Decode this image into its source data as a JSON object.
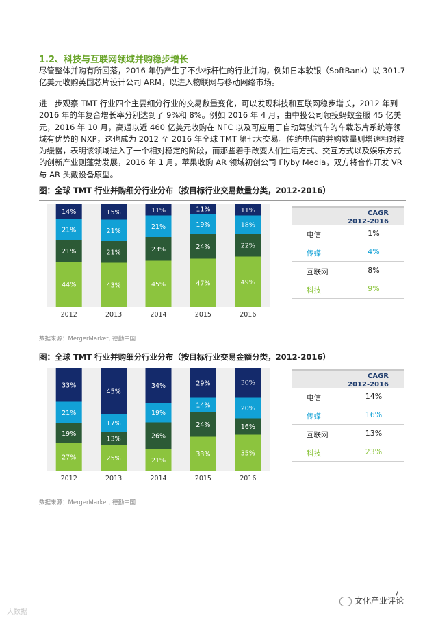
{
  "section": {
    "heading": "1.2、科技与互联网领域并购稳步增长",
    "paragraph1": "尽管整体并购有所回落，2016 年仍产生了不少标杆性的行业并购，例如日本软银（SoftBank）以 301.7 亿美元收购英国芯片设计公司 ARM，以进入物联网与移动网络市场。",
    "paragraph2": "进一步观察 TMT 行业四个主要细分行业的交易数量变化，可以发现科技和互联网稳步增长，2012 年到 2016 年的年复合增长率分别达到了 9%和 8%。例如 2016 年 4 月，由中投公司领投蚂蚁金服 45 亿美元，2016 年 10 月，高通以近 460 亿美元收购在 NFC 以及可应用于自动驾驶汽车的车载芯片系统等领域有优势的 NXP，这也成为 2012 至 2016 年全球 TMT 第七大交易。传统电信的并购数量则增速相对较为缓慢，表明该领域进入了一个相对稳定的阶段，而那些着手改变人们生活方式、交互方式以及娱乐方式的创新产业则蓬勃发展，2016 年 1 月，苹果收购 AR 领域初创公司 Flyby Media，双方将合作开发 VR 与 AR 头戴设备原型。"
  },
  "colors": {
    "电信": "#142a6b",
    "传媒": "#12a1d6",
    "互联网": "#2c5a36",
    "科技": "#8cc43e",
    "heading": "#6aa52a"
  },
  "cagr_header": "CAGR\n2012-2016",
  "chart_data": [
    {
      "type": "bar",
      "stacked": true,
      "title": "图：全球 TMT 行业并购细分行业分布（按目标行业交易数量分类，2012-2016）",
      "categories": [
        "2012",
        "2013",
        "2014",
        "2015",
        "2016"
      ],
      "series": [
        {
          "name": "科技",
          "values": [
            44,
            43,
            45,
            47,
            49
          ]
        },
        {
          "name": "互联网",
          "values": [
            21,
            21,
            23,
            24,
            22
          ]
        },
        {
          "name": "传媒",
          "values": [
            21,
            21,
            21,
            19,
            18
          ]
        },
        {
          "name": "电信",
          "values": [
            14,
            15,
            11,
            11,
            11
          ]
        }
      ],
      "ylim": [
        0,
        100
      ],
      "unit": "%",
      "source": "数据来源：MergerMarket, 德勤中国",
      "cagr": [
        {
          "name": "电信",
          "value": "1%"
        },
        {
          "name": "传媒",
          "value": "4%"
        },
        {
          "name": "互联网",
          "value": "8%"
        },
        {
          "name": "科技",
          "value": "9%"
        }
      ]
    },
    {
      "type": "bar",
      "stacked": true,
      "title": "图：全球 TMT 行业并购细分行业分布（按目标行业交易金额分类，2012-2016）",
      "categories": [
        "2012",
        "2013",
        "2014",
        "2015",
        "2016"
      ],
      "series": [
        {
          "name": "科技",
          "values": [
            27,
            25,
            21,
            33,
            35
          ]
        },
        {
          "name": "互联网",
          "values": [
            19,
            13,
            26,
            24,
            16
          ]
        },
        {
          "name": "传媒",
          "values": [
            21,
            17,
            19,
            14,
            20
          ]
        },
        {
          "name": "电信",
          "values": [
            33,
            45,
            34,
            29,
            30
          ]
        }
      ],
      "ylim": [
        0,
        100
      ],
      "unit": "%",
      "source": "数据来源：MergerMarket, 德勤中国",
      "cagr": [
        {
          "name": "电信",
          "value": "14%"
        },
        {
          "name": "传媒",
          "value": "16%"
        },
        {
          "name": "互联网",
          "value": "13%"
        },
        {
          "name": "科技",
          "value": "23%"
        }
      ]
    }
  ],
  "footer": {
    "page_number": "7",
    "brand": "文化产业评论",
    "watermark": "大数据"
  }
}
